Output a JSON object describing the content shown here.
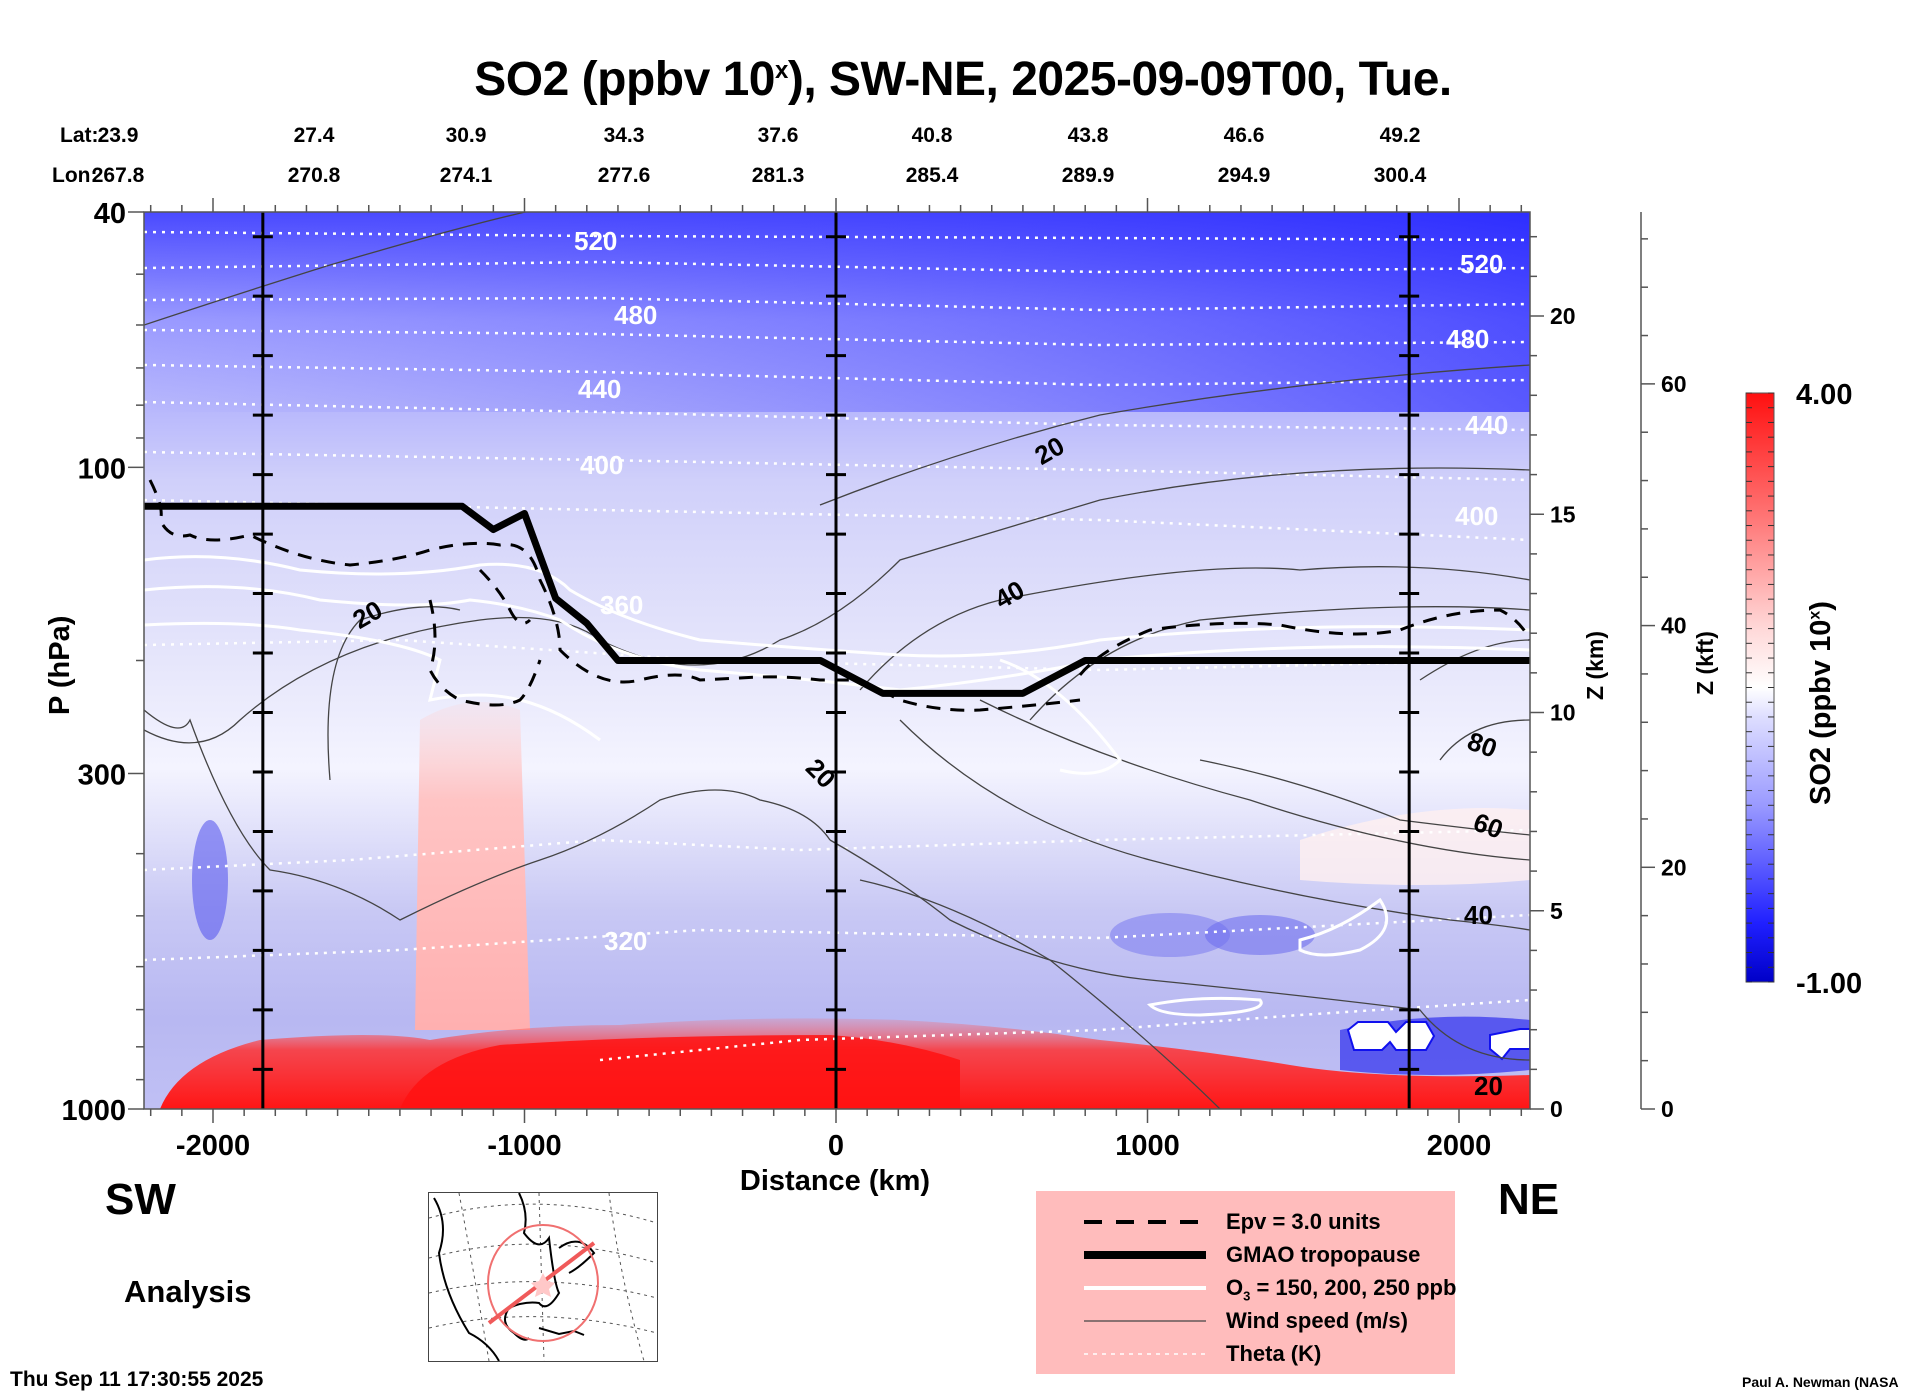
{
  "title": {
    "prefix": "SO2 (ppbv 10",
    "sup": "x",
    "suffix": "), SW-NE, 2025-09-09T00, Tue."
  },
  "latlon": {
    "lat_label": "Lat:",
    "lon_label": "Lon:",
    "lat": [
      "23.9",
      "27.4",
      "30.9",
      "34.3",
      "37.6",
      "40.8",
      "43.8",
      "46.6",
      "49.2"
    ],
    "lon": [
      "267.8",
      "270.8",
      "274.1",
      "277.6",
      "281.3",
      "285.4",
      "289.9",
      "294.9",
      "300.4"
    ]
  },
  "labels": {
    "sw": "SW",
    "ne": "NE",
    "analysis": "Analysis",
    "timestamp": "Thu Sep 11 17:30:55 2025",
    "credit": "Paul A. Newman (NASA"
  },
  "legend": {
    "items": [
      {
        "style": "dashed",
        "label": "Epv = 3.0 units"
      },
      {
        "style": "thick",
        "label": "GMAO tropopause"
      },
      {
        "style": "white",
        "label": "O3 = 150, 200, 250 ppb"
      },
      {
        "style": "thin",
        "label": "Wind speed (m/s)"
      },
      {
        "style": "dotted",
        "label": "Theta (K)"
      }
    ]
  },
  "colors": {
    "low": "#0000e0",
    "mid": "#ffffff",
    "high": "#ff0000",
    "legend_bg": "#ffbcbc"
  },
  "chart_data": {
    "type": "heatmap",
    "title": "SO2 (ppbv 10^x), SW-NE, 2025-09-09T00, Tue.",
    "xlabel": "Distance (km)",
    "ylabel": "P (hPa)",
    "y2label": "Z (km)",
    "y3label": "Z (kft)",
    "colorbar_label": "SO2 (ppbv 10^x)",
    "xlim": [
      -2230,
      2230
    ],
    "ylim": [
      1000,
      40
    ],
    "yscale": "log",
    "x_ticks": [
      -2000,
      -1000,
      0,
      1000,
      2000
    ],
    "x_tick_labels": [
      "-2000",
      "-1000",
      "0",
      "1000",
      "2000"
    ],
    "y_ticks": [
      40,
      100,
      300,
      1000
    ],
    "y_tick_labels": [
      "40",
      "100",
      "300",
      "1000"
    ],
    "z_km_ticks": [
      0,
      5,
      10,
      15,
      20
    ],
    "z_kft_ticks": [
      0,
      20,
      40,
      60
    ],
    "colorbar_range": [
      -1.0,
      4.0
    ],
    "colorbar_tick_labels": [
      "4.00",
      "-1.00"
    ],
    "vertical_markers_km": [
      -1840,
      0,
      1840
    ],
    "theta_contours_K": [
      320,
      360,
      400,
      440,
      480,
      520
    ],
    "wind_contour_labels": [
      20,
      40,
      60,
      80
    ],
    "tropopause_hPa": [
      {
        "x": -2230,
        "p": 115
      },
      {
        "x": -1200,
        "p": 115
      },
      {
        "x": -1100,
        "p": 125
      },
      {
        "x": -1000,
        "p": 118
      },
      {
        "x": -900,
        "p": 160
      },
      {
        "x": -800,
        "p": 175
      },
      {
        "x": -700,
        "p": 200
      },
      {
        "x": -50,
        "p": 200
      },
      {
        "x": 150,
        "p": 225
      },
      {
        "x": 600,
        "p": 225
      },
      {
        "x": 800,
        "p": 200
      },
      {
        "x": 2230,
        "p": 200
      }
    ],
    "notes": "SO2 high (red, ~10^3-10^4) in boundary layer below ~850 hPa; plume rising near -1300 km to ~250 hPa; stratosphere blue (low)."
  }
}
